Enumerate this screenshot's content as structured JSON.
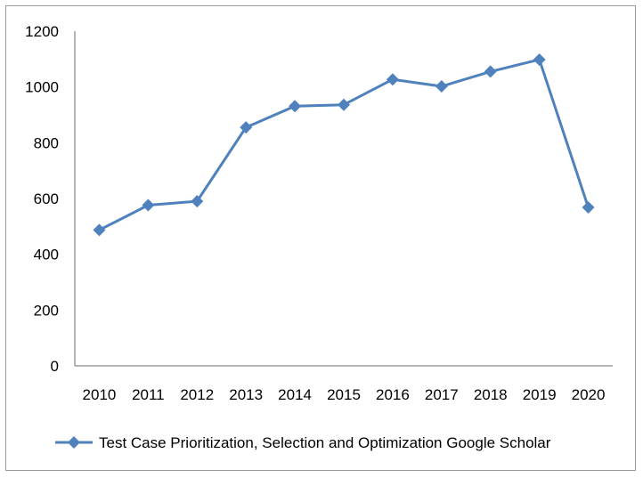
{
  "chart_data": {
    "type": "line",
    "title": "",
    "xlabel": "",
    "ylabel": "",
    "categories": [
      "2010",
      "2011",
      "2012",
      "2013",
      "2014",
      "2015",
      "2016",
      "2017",
      "2018",
      "2019",
      "2020"
    ],
    "series": [
      {
        "name": "Test Case Prioritization, Selection and Optimization Google Scholar",
        "values": [
          487,
          576,
          590,
          855,
          931,
          936,
          1027,
          1002,
          1055,
          1098,
          568
        ],
        "color": "#4f81bd",
        "marker": "diamond"
      }
    ],
    "ylim": [
      0,
      1200
    ],
    "yticks": [
      "0",
      "200",
      "400",
      "600",
      "800",
      "1000",
      "1200"
    ],
    "grid": false,
    "legend_position": "bottom"
  }
}
